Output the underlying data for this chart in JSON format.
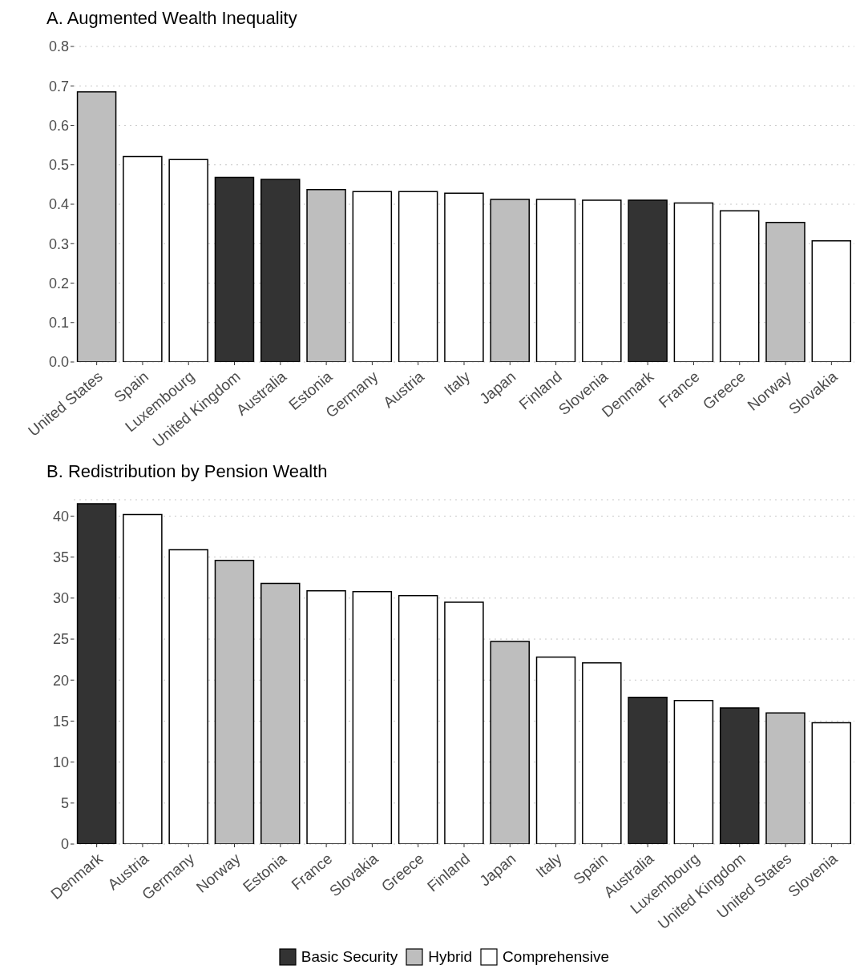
{
  "chart_data": [
    {
      "type": "bar",
      "title": "A. Augmented Wealth Inequality",
      "stacked": true,
      "grid": "y",
      "legend": false,
      "categories": [
        "United States",
        "Spain",
        "Luxembourg",
        "United Kingdom",
        "Australia",
        "Estonia",
        "Germany",
        "Austria",
        "Italy",
        "Japan",
        "Finland",
        "Slovenia",
        "Denmark",
        "France",
        "Greece",
        "Norway",
        "Slovakia"
      ],
      "series": [
        {
          "color": "#333333",
          "values": [
            null,
            null,
            null,
            0.468,
            0.463,
            null,
            null,
            null,
            null,
            null,
            null,
            null,
            0.41,
            null,
            null,
            null,
            null
          ]
        },
        {
          "color": "#bebebe",
          "values": [
            0.685,
            null,
            null,
            null,
            null,
            0.437,
            null,
            null,
            null,
            0.412,
            null,
            null,
            null,
            null,
            null,
            0.354,
            null
          ]
        },
        {
          "color": "#ffffff",
          "values": [
            null,
            0.521,
            0.513,
            null,
            null,
            null,
            0.432,
            0.432,
            0.428,
            null,
            0.412,
            0.41,
            null,
            0.403,
            0.383,
            null,
            0.307
          ]
        }
      ],
      "ylim": [
        0,
        0.8
      ],
      "yticks": [
        {
          "value": 0,
          "label": "0.0"
        },
        0.1,
        0.2,
        0.3,
        0.4,
        0.5,
        0.6,
        0.7,
        0.8
      ]
    },
    {
      "type": "bar",
      "title": "B. Redistribution by Pension Wealth",
      "stacked": true,
      "grid": "y",
      "legend": "bottom",
      "categories": [
        "Denmark",
        "Austria",
        "Germany",
        "Norway",
        "Estonia",
        "France",
        "Slovakia",
        "Greece",
        "Finland",
        "Japan",
        "Italy",
        "Spain",
        "Australia",
        "Luxembourg",
        "United Kingdom",
        "United States",
        "Slovenia"
      ],
      "series": [
        {
          "name": "Basic Security",
          "color": "#333333",
          "values": [
            41.5,
            null,
            null,
            null,
            null,
            null,
            null,
            null,
            null,
            null,
            null,
            null,
            17.9,
            null,
            16.6,
            null,
            null
          ]
        },
        {
          "name": "Hybrid",
          "color": "#bebebe",
          "values": [
            null,
            null,
            null,
            34.6,
            31.8,
            null,
            null,
            null,
            null,
            24.7,
            null,
            null,
            null,
            null,
            null,
            16.0,
            null
          ]
        },
        {
          "name": "Comprehensive",
          "color": "#ffffff",
          "values": [
            null,
            40.2,
            35.9,
            null,
            null,
            30.9,
            30.8,
            30.3,
            29.5,
            null,
            22.8,
            22.1,
            null,
            17.5,
            null,
            null,
            14.8
          ]
        }
      ],
      "ylim": [
        0,
        42
      ],
      "yticks": [
        0,
        5,
        10,
        15,
        20,
        25,
        30,
        35,
        40
      ]
    }
  ]
}
